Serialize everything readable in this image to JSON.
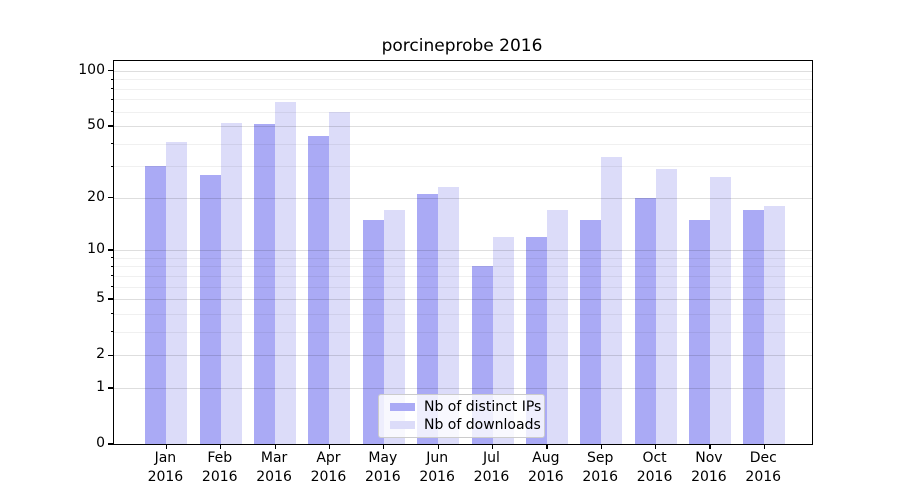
{
  "chart_data": {
    "type": "bar",
    "title": "porcineprobe 2016",
    "categories": [
      "Jan",
      "Feb",
      "Mar",
      "Apr",
      "May",
      "Jun",
      "Jul",
      "Aug",
      "Sep",
      "Oct",
      "Nov",
      "Dec"
    ],
    "year": "2016",
    "series": [
      {
        "name": "Nb of distinct IPs",
        "color": "#aaaaf5",
        "values": [
          30,
          27,
          51,
          44,
          15,
          21,
          8,
          12,
          15,
          20,
          15,
          17
        ]
      },
      {
        "name": "Nb of downloads",
        "color": "#dcdcf9",
        "values": [
          41,
          52,
          68,
          60,
          17,
          23,
          12,
          17,
          34,
          29,
          26,
          18
        ]
      }
    ],
    "yscale": "log1p",
    "ylim": [
      0,
      113
    ],
    "yticks_major": [
      0,
      1,
      2,
      5,
      10,
      20,
      50,
      100
    ],
    "yticks_minor": [
      3,
      4,
      6,
      7,
      8,
      9,
      30,
      40,
      60,
      70,
      80,
      90
    ],
    "grid": true,
    "legend_position": "lower-center"
  }
}
